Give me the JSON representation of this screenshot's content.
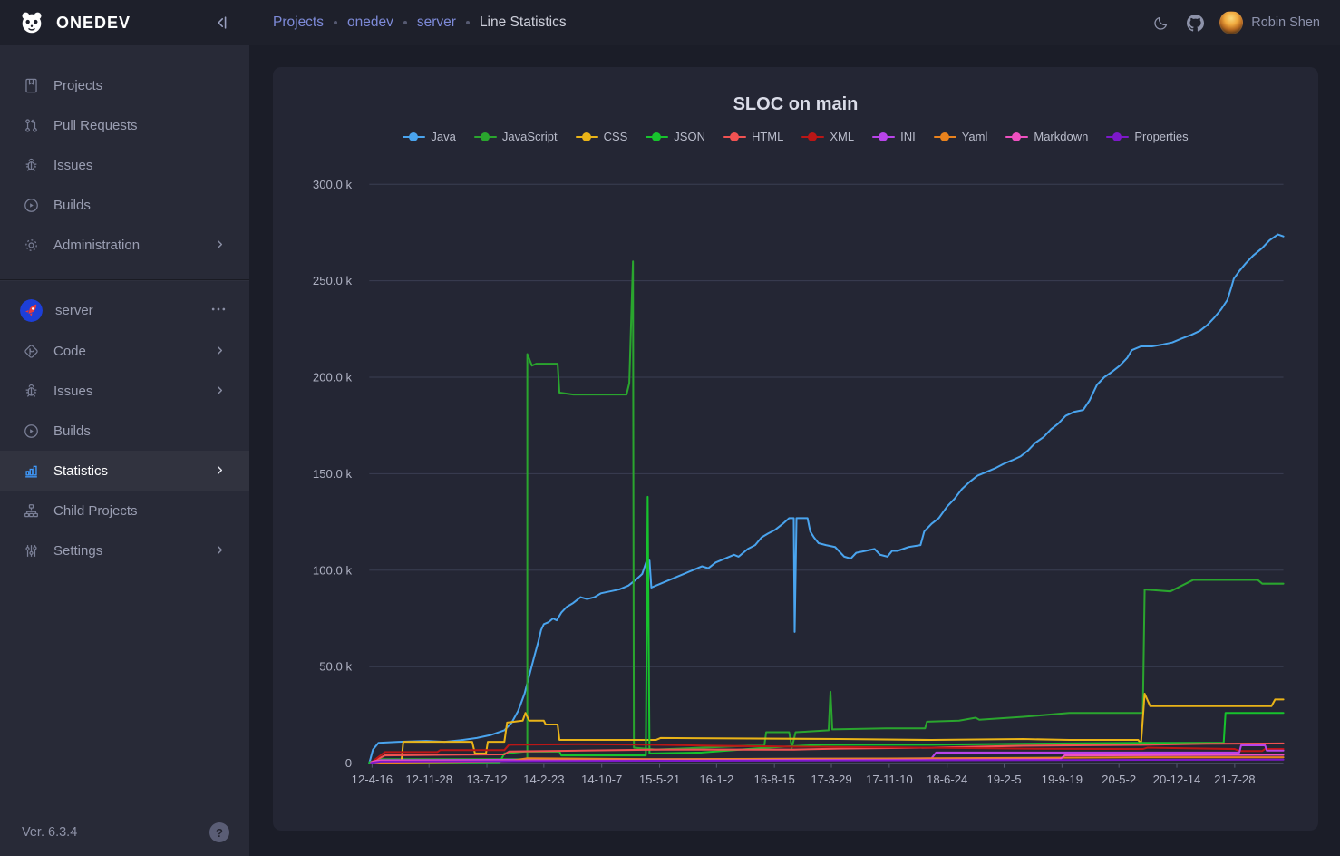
{
  "sidebar": {
    "logo_text": "ONEDEV",
    "version": "Ver. 6.3.4",
    "help_glyph": "?",
    "main_nav": [
      {
        "label": "Projects",
        "icon": "book-icon",
        "chevron": false
      },
      {
        "label": "Pull Requests",
        "icon": "pull-request-icon",
        "chevron": false
      },
      {
        "label": "Issues",
        "icon": "bug-icon",
        "chevron": false
      },
      {
        "label": "Builds",
        "icon": "play-circle-icon",
        "chevron": false
      },
      {
        "label": "Administration",
        "icon": "gear-icon",
        "chevron": true
      }
    ],
    "project": {
      "name": "server",
      "avatar_icon": "rocket-avatar",
      "items": [
        {
          "label": "Code",
          "icon": "code-icon",
          "chevron": true,
          "active": false
        },
        {
          "label": "Issues",
          "icon": "bug-icon",
          "chevron": true,
          "active": false
        },
        {
          "label": "Builds",
          "icon": "play-circle-icon",
          "chevron": false,
          "active": false
        },
        {
          "label": "Statistics",
          "icon": "bar-chart-icon",
          "chevron": true,
          "active": true
        },
        {
          "label": "Child Projects",
          "icon": "tree-icon",
          "chevron": false,
          "active": false
        },
        {
          "label": "Settings",
          "icon": "sliders-icon",
          "chevron": true,
          "active": false
        }
      ]
    }
  },
  "topbar": {
    "breadcrumb": [
      {
        "label": "Projects",
        "link": true
      },
      {
        "label": "onedev",
        "link": true
      },
      {
        "label": "server",
        "link": true
      },
      {
        "label": "Line Statistics",
        "link": false
      }
    ],
    "user_name": "Robin Shen"
  },
  "chart_data": {
    "type": "line",
    "title": "SLOC on main",
    "ylabel": "",
    "xlabel": "",
    "ylim_k": [
      0,
      300
    ],
    "grid": true,
    "legend_position": "top",
    "y_tick_values_k": [
      0,
      50,
      100,
      150,
      200,
      250,
      300
    ],
    "y_tick_labels": [
      "0",
      "50.0 k",
      "100.0 k",
      "150.0 k",
      "200.0 k",
      "250.0 k",
      "300.0 k"
    ],
    "x_tick_labels": [
      "12-4-16",
      "12-11-28",
      "13-7-12",
      "14-2-23",
      "14-10-7",
      "15-5-21",
      "16-1-2",
      "16-8-15",
      "17-3-29",
      "17-11-10",
      "18-6-24",
      "19-2-5",
      "19-9-19",
      "20-5-2",
      "20-12-14",
      "21-7-28"
    ],
    "x_tick_pos": [
      16,
      78,
      141,
      203,
      266,
      329,
      391,
      454,
      516,
      579,
      642,
      704,
      767,
      829,
      892,
      955
    ],
    "x_range": [
      0,
      1008
    ],
    "unit": "lines of code, values in thousands (k)",
    "series": [
      {
        "name": "Java",
        "color": "#4aa4ee",
        "points": [
          [
            13,
            0
          ],
          [
            17,
            7
          ],
          [
            23,
            10.5
          ],
          [
            45,
            11
          ],
          [
            75,
            11.5
          ],
          [
            95,
            11
          ],
          [
            115,
            12
          ],
          [
            130,
            13
          ],
          [
            145,
            14.5
          ],
          [
            160,
            17
          ],
          [
            168,
            21
          ],
          [
            175,
            27
          ],
          [
            182,
            36
          ],
          [
            188,
            47
          ],
          [
            193,
            56
          ],
          [
            197,
            63
          ],
          [
            200,
            69
          ],
          [
            203,
            72
          ],
          [
            208,
            73
          ],
          [
            213,
            75
          ],
          [
            217,
            74
          ],
          [
            222,
            78
          ],
          [
            228,
            81
          ],
          [
            235,
            83
          ],
          [
            243,
            86
          ],
          [
            250,
            85
          ],
          [
            258,
            86
          ],
          [
            265,
            88
          ],
          [
            275,
            89
          ],
          [
            285,
            90
          ],
          [
            295,
            92
          ],
          [
            303,
            95
          ],
          [
            310,
            98
          ],
          [
            315,
            105
          ],
          [
            318,
            105
          ],
          [
            320,
            91
          ],
          [
            325,
            92
          ],
          [
            335,
            94
          ],
          [
            345,
            96
          ],
          [
            355,
            98
          ],
          [
            365,
            100
          ],
          [
            375,
            102
          ],
          [
            382,
            101
          ],
          [
            390,
            104
          ],
          [
            400,
            106
          ],
          [
            410,
            108
          ],
          [
            415,
            107
          ],
          [
            425,
            111
          ],
          [
            433,
            113
          ],
          [
            440,
            117
          ],
          [
            447,
            119
          ],
          [
            455,
            121
          ],
          [
            463,
            124
          ],
          [
            470,
            127
          ],
          [
            475,
            127
          ],
          [
            476,
            68
          ],
          [
            478,
            127
          ],
          [
            490,
            127
          ],
          [
            493,
            120
          ],
          [
            497,
            117
          ],
          [
            502,
            114
          ],
          [
            510,
            113
          ],
          [
            520,
            112
          ],
          [
            530,
            107
          ],
          [
            537,
            106
          ],
          [
            543,
            109
          ],
          [
            553,
            110
          ],
          [
            563,
            111
          ],
          [
            569,
            108
          ],
          [
            577,
            107
          ],
          [
            582,
            110
          ],
          [
            588,
            110
          ],
          [
            600,
            112
          ],
          [
            613,
            113
          ],
          [
            617,
            120
          ],
          [
            625,
            124
          ],
          [
            633,
            127
          ],
          [
            642,
            133
          ],
          [
            650,
            137
          ],
          [
            658,
            142
          ],
          [
            667,
            146
          ],
          [
            675,
            149
          ],
          [
            685,
            151
          ],
          [
            695,
            153
          ],
          [
            703,
            155
          ],
          [
            713,
            157
          ],
          [
            722,
            159
          ],
          [
            730,
            162
          ],
          [
            738,
            166
          ],
          [
            747,
            169
          ],
          [
            755,
            173
          ],
          [
            763,
            176
          ],
          [
            771,
            180
          ],
          [
            780,
            182
          ],
          [
            790,
            183
          ],
          [
            797,
            188
          ],
          [
            805,
            196
          ],
          [
            813,
            200
          ],
          [
            822,
            203
          ],
          [
            830,
            206
          ],
          [
            838,
            210
          ],
          [
            843,
            214
          ],
          [
            853,
            216
          ],
          [
            865,
            216
          ],
          [
            877,
            217
          ],
          [
            887,
            218
          ],
          [
            897,
            220
          ],
          [
            908,
            222
          ],
          [
            917,
            224
          ],
          [
            925,
            227
          ],
          [
            933,
            231
          ],
          [
            940,
            235
          ],
          [
            947,
            240
          ],
          [
            951,
            246
          ],
          [
            954,
            251
          ],
          [
            960,
            255
          ],
          [
            967,
            259
          ],
          [
            975,
            263
          ],
          [
            985,
            267
          ],
          [
            993,
            271
          ],
          [
            1002,
            274
          ],
          [
            1008,
            273
          ]
        ]
      },
      {
        "name": "JavaScript",
        "color": "#2aa52e",
        "points": [
          [
            13,
            0.5
          ],
          [
            25,
            2
          ],
          [
            185,
            2
          ],
          [
            185,
            212
          ],
          [
            190,
            206
          ],
          [
            195,
            207
          ],
          [
            218,
            207
          ],
          [
            220,
            192
          ],
          [
            235,
            191
          ],
          [
            293,
            191
          ],
          [
            296,
            197
          ],
          [
            300,
            260
          ],
          [
            301,
            8
          ],
          [
            325,
            7
          ],
          [
            375,
            8
          ],
          [
            425,
            9
          ],
          [
            443,
            9
          ],
          [
            445,
            16
          ],
          [
            470,
            16
          ],
          [
            473,
            8
          ],
          [
            477,
            16
          ],
          [
            495,
            16.5
          ],
          [
            513,
            17
          ],
          [
            515,
            37
          ],
          [
            517,
            17.5
          ],
          [
            575,
            18
          ],
          [
            618,
            18
          ],
          [
            620,
            21.5
          ],
          [
            655,
            22
          ],
          [
            673,
            23.5
          ],
          [
            677,
            22.5
          ],
          [
            725,
            24
          ],
          [
            775,
            26
          ],
          [
            855,
            26
          ],
          [
            857,
            90
          ],
          [
            885,
            89
          ],
          [
            910,
            95
          ],
          [
            980,
            95
          ],
          [
            985,
            93
          ],
          [
            1008,
            93
          ]
        ]
      },
      {
        "name": "CSS",
        "color": "#e9b318",
        "points": [
          [
            15,
            0.5
          ],
          [
            48,
            1
          ],
          [
            50,
            11
          ],
          [
            125,
            11
          ],
          [
            128,
            5
          ],
          [
            140,
            5
          ],
          [
            142,
            11
          ],
          [
            160,
            11
          ],
          [
            163,
            21
          ],
          [
            180,
            22
          ],
          [
            183,
            26
          ],
          [
            187,
            22
          ],
          [
            203,
            22
          ],
          [
            205,
            20
          ],
          [
            218,
            20
          ],
          [
            220,
            12
          ],
          [
            325,
            12
          ],
          [
            330,
            13
          ],
          [
            525,
            12.5
          ],
          [
            625,
            12
          ],
          [
            725,
            12.5
          ],
          [
            775,
            12
          ],
          [
            850,
            12
          ],
          [
            853,
            10
          ],
          [
            857,
            36
          ],
          [
            863,
            29.5
          ],
          [
            995,
            29.5
          ],
          [
            999,
            33
          ],
          [
            1008,
            33
          ]
        ]
      },
      {
        "name": "JSON",
        "color": "#17c22d",
        "points": [
          [
            13,
            0.2
          ],
          [
            155,
            0.5
          ],
          [
            160,
            5
          ],
          [
            182,
            6
          ],
          [
            220,
            6
          ],
          [
            222,
            4
          ],
          [
            305,
            4
          ],
          [
            314,
            4
          ],
          [
            316,
            138
          ],
          [
            318,
            5
          ],
          [
            375,
            5.5
          ],
          [
            445,
            8
          ],
          [
            505,
            9.5
          ],
          [
            625,
            9.5
          ],
          [
            725,
            10
          ],
          [
            855,
            10.5
          ],
          [
            943,
            10.5
          ],
          [
            945,
            26
          ],
          [
            1008,
            26
          ]
        ]
      },
      {
        "name": "HTML",
        "color": "#f15252",
        "points": [
          [
            15,
            0.3
          ],
          [
            30,
            4
          ],
          [
            85,
            4.3
          ],
          [
            160,
            4.5
          ],
          [
            165,
            6
          ],
          [
            245,
            6.5
          ],
          [
            325,
            7
          ],
          [
            475,
            7
          ],
          [
            525,
            7.5
          ],
          [
            625,
            8
          ],
          [
            725,
            9
          ],
          [
            857,
            9.5
          ],
          [
            925,
            10
          ],
          [
            1008,
            10.2
          ]
        ]
      },
      {
        "name": "XML",
        "color": "#bb1616",
        "points": [
          [
            15,
            0.3
          ],
          [
            30,
            5.7
          ],
          [
            87,
            5.7
          ],
          [
            90,
            6.7
          ],
          [
            160,
            6.7
          ],
          [
            165,
            9.5
          ],
          [
            245,
            9.8
          ],
          [
            325,
            9.5
          ],
          [
            385,
            9
          ],
          [
            475,
            8.5
          ],
          [
            625,
            8
          ],
          [
            725,
            7.5
          ],
          [
            855,
            7.3
          ],
          [
            860,
            8
          ],
          [
            955,
            7.3
          ],
          [
            960,
            6.3
          ],
          [
            985,
            6.3
          ],
          [
            988,
            7.3
          ],
          [
            1008,
            7.3
          ]
        ]
      },
      {
        "name": "INI",
        "color": "#b944ea",
        "points": [
          [
            15,
            0.2
          ],
          [
            25,
            1.5
          ],
          [
            325,
            2
          ],
          [
            525,
            2.3
          ],
          [
            625,
            2.5
          ],
          [
            630,
            5.5
          ],
          [
            960,
            5.5
          ],
          [
            962,
            9.2
          ],
          [
            988,
            9.2
          ],
          [
            990,
            6.5
          ],
          [
            1008,
            6.5
          ]
        ]
      },
      {
        "name": "Yaml",
        "color": "#e9821d",
        "points": [
          [
            15,
            0.1
          ],
          [
            165,
            1
          ],
          [
            185,
            2.5
          ],
          [
            325,
            2
          ],
          [
            625,
            2.5
          ],
          [
            855,
            3
          ],
          [
            1008,
            3
          ]
        ]
      },
      {
        "name": "Markdown",
        "color": "#ee50c0",
        "points": [
          [
            15,
            0.5
          ],
          [
            20,
            1.2
          ],
          [
            325,
            1.5
          ],
          [
            625,
            1.8
          ],
          [
            765,
            2
          ],
          [
            770,
            4
          ],
          [
            1008,
            4.3
          ]
        ]
      },
      {
        "name": "Properties",
        "color": "#7d18c9",
        "points": [
          [
            15,
            0.1
          ],
          [
            25,
            0.8
          ],
          [
            325,
            1.2
          ],
          [
            625,
            1.5
          ],
          [
            1008,
            1.8
          ]
        ]
      }
    ]
  },
  "theme": {
    "sidebar_bg": "#282a37",
    "topbar_bg": "#1e202b",
    "content_bg": "#1b1d28",
    "card_bg": "#242634",
    "accent_blue": "#3f9bff",
    "link_color": "#7d8ad8",
    "grid_color": "#3a3e52"
  }
}
